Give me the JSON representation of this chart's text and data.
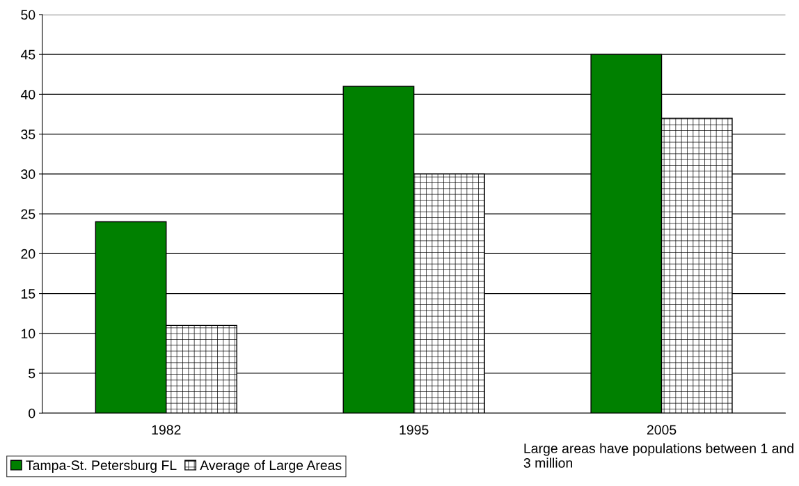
{
  "chart_data": {
    "type": "bar",
    "categories": [
      "1982",
      "1995",
      "2005"
    ],
    "series": [
      {
        "name": "Tampa-St. Petersburg FL",
        "color": "#008000",
        "values": [
          24,
          41,
          45
        ]
      },
      {
        "name": "Average of Large Areas",
        "color": "#000000",
        "values": [
          11,
          30,
          37
        ]
      }
    ],
    "ylim": [
      0,
      50
    ],
    "yticks": [
      0,
      5,
      10,
      15,
      20,
      25,
      30,
      35,
      40,
      45,
      50
    ],
    "grid": "y",
    "legend": "bottom left",
    "annotations": [
      "Large areas have populations between 1 and 3 million"
    ]
  }
}
